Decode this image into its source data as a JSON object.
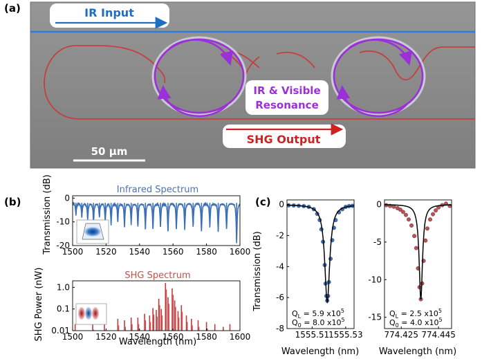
{
  "figure": {
    "panel_labels": {
      "a": "(a)",
      "b": "(b)",
      "c": "(c)"
    }
  },
  "micrograph": {
    "ir_input_label": "IR Input",
    "shg_output_label": "SHG Output",
    "resonance_label_line1": "IR & Visible",
    "resonance_label_line2": "Resonance",
    "scale_bar_label": "50 µm",
    "colors": {
      "ir": "#1f6fc0",
      "shg": "#cc2222",
      "resonance": "#9b30d9",
      "background": "#8c8c8c"
    }
  },
  "chart_data": [
    {
      "id": "ir_spectrum",
      "type": "line",
      "title": "Infrared Spectrum",
      "ylabel": "Transmission (dB)",
      "xlim": [
        1500,
        1600
      ],
      "ylim": [
        -20,
        1
      ],
      "xticks": [
        1500,
        1520,
        1540,
        1560,
        1580,
        1600
      ],
      "yticks": [
        0,
        -10,
        -20
      ],
      "baseline_db": -2,
      "dips": [
        {
          "x": 1502.0,
          "depth": -7
        },
        {
          "x": 1505.5,
          "depth": -8
        },
        {
          "x": 1509.0,
          "depth": -9
        },
        {
          "x": 1512.5,
          "depth": -10
        },
        {
          "x": 1516.0,
          "depth": -8
        },
        {
          "x": 1519.5,
          "depth": -10
        },
        {
          "x": 1523.0,
          "depth": -11
        },
        {
          "x": 1527.0,
          "depth": -10
        },
        {
          "x": 1531.0,
          "depth": -12
        },
        {
          "x": 1535.0,
          "depth": -11
        },
        {
          "x": 1539.0,
          "depth": -12
        },
        {
          "x": 1543.5,
          "depth": -13
        },
        {
          "x": 1548.0,
          "depth": -13
        },
        {
          "x": 1552.5,
          "depth": -12
        },
        {
          "x": 1557.0,
          "depth": -14
        },
        {
          "x": 1562.0,
          "depth": -13
        },
        {
          "x": 1567.0,
          "depth": -13
        },
        {
          "x": 1572.0,
          "depth": -12
        },
        {
          "x": 1577.0,
          "depth": -14
        },
        {
          "x": 1582.0,
          "depth": -12
        },
        {
          "x": 1587.0,
          "depth": -14
        },
        {
          "x": 1592.0,
          "depth": -13
        },
        {
          "x": 1598.0,
          "depth": -19
        }
      ],
      "colors": {
        "line": "#3b6fb6"
      }
    },
    {
      "id": "shg_spectrum",
      "type": "bar",
      "title": "SHG Spectrum",
      "xlabel": "Wavelength (nm)",
      "ylabel": "SHG Power (nW)",
      "yscale": "log",
      "xlim": [
        1500,
        1600
      ],
      "ylim": [
        0.01,
        2
      ],
      "xticks": [
        1500,
        1520,
        1540,
        1560,
        1580,
        1600
      ],
      "ytick_labels": [
        "1.0",
        "0.1",
        "0.01"
      ],
      "ytick_values": [
        1.0,
        0.1,
        0.01
      ],
      "peaks": [
        {
          "x": 1501.5,
          "y": 0.02
        },
        {
          "x": 1512.0,
          "y": 0.022
        },
        {
          "x": 1519.0,
          "y": 0.02
        },
        {
          "x": 1527.0,
          "y": 0.035
        },
        {
          "x": 1531.0,
          "y": 0.03
        },
        {
          "x": 1535.0,
          "y": 0.04
        },
        {
          "x": 1539.0,
          "y": 0.04
        },
        {
          "x": 1543.0,
          "y": 0.06
        },
        {
          "x": 1546.0,
          "y": 0.05
        },
        {
          "x": 1548.0,
          "y": 0.11
        },
        {
          "x": 1550.0,
          "y": 0.09
        },
        {
          "x": 1551.5,
          "y": 0.3
        },
        {
          "x": 1553.0,
          "y": 0.1
        },
        {
          "x": 1555.5,
          "y": 1.6
        },
        {
          "x": 1557.0,
          "y": 0.35
        },
        {
          "x": 1559.5,
          "y": 0.9
        },
        {
          "x": 1561.0,
          "y": 0.25
        },
        {
          "x": 1563.0,
          "y": 0.08
        },
        {
          "x": 1565.0,
          "y": 0.15
        },
        {
          "x": 1568.0,
          "y": 0.05
        },
        {
          "x": 1571.0,
          "y": 0.035
        },
        {
          "x": 1575.0,
          "y": 0.03
        },
        {
          "x": 1580.0,
          "y": 0.025
        },
        {
          "x": 1585.0,
          "y": 0.02
        },
        {
          "x": 1590.0,
          "y": 0.015
        },
        {
          "x": 1594.0,
          "y": 0.02
        }
      ],
      "colors": {
        "bar": "#c23a3a"
      }
    },
    {
      "id": "ir_resonance",
      "type": "scatter",
      "xlabel": "Wavelength (nm)",
      "ylabel": "Transmission (dB)",
      "xlim": [
        1555.495,
        1555.535
      ],
      "ylim": [
        -8,
        0.3
      ],
      "xticks": [
        1555.51,
        1555.53
      ],
      "xtick_labels": [
        "1555.51",
        "1555.53"
      ],
      "yticks": [
        0,
        -2,
        -4,
        -6,
        -8
      ],
      "resonance_center": 1555.519,
      "depth_db": -6.3,
      "fwhm": 0.0036,
      "points": [
        [
          1555.496,
          -0.05
        ],
        [
          1555.499,
          -0.06
        ],
        [
          1555.502,
          -0.08
        ],
        [
          1555.505,
          -0.1
        ],
        [
          1555.508,
          -0.15
        ],
        [
          1555.511,
          -0.3
        ],
        [
          1555.513,
          -0.6
        ],
        [
          1555.5145,
          -1.0
        ],
        [
          1555.5155,
          -1.6
        ],
        [
          1555.5165,
          -2.4
        ],
        [
          1555.5175,
          -3.9
        ],
        [
          1555.518,
          -5.1
        ],
        [
          1555.5185,
          -5.9
        ],
        [
          1555.519,
          -6.2
        ],
        [
          1555.5195,
          -5.9
        ],
        [
          1555.52,
          -5.0
        ],
        [
          1555.521,
          -3.5
        ],
        [
          1555.522,
          -2.3
        ],
        [
          1555.523,
          -1.5
        ],
        [
          1555.524,
          -1.0
        ],
        [
          1555.526,
          -0.5
        ],
        [
          1555.528,
          -0.3
        ],
        [
          1555.53,
          -0.15
        ],
        [
          1555.532,
          -0.1
        ],
        [
          1555.534,
          -0.08
        ]
      ],
      "annotation_line1": "Q",
      "annotation_line1_sub": "L",
      "annotation_line1_value": " = 5.9 x10",
      "annotation_line1_exp": "5",
      "annotation_line2": "Q",
      "annotation_line2_sub": "0",
      "annotation_line2_value": " = 8.0 x10",
      "annotation_line2_exp": "5",
      "colors": {
        "points": "#3b6fb6",
        "fit": "#000000"
      }
    },
    {
      "id": "visible_resonance",
      "type": "scatter",
      "xlabel": "Wavelength (nm)",
      "xlim": [
        774.416,
        774.452
      ],
      "ylim": [
        -16.5,
        0.6
      ],
      "xticks": [
        774.425,
        774.445
      ],
      "xtick_labels": [
        "774.425",
        "774.445"
      ],
      "yticks": [
        0,
        -5,
        -10,
        -15
      ],
      "resonance_center": 774.4355,
      "depth_db": -12.6,
      "fwhm": 0.0022,
      "points": [
        [
          774.417,
          -0.1
        ],
        [
          774.419,
          -0.2
        ],
        [
          774.421,
          -0.3
        ],
        [
          774.423,
          -0.5
        ],
        [
          774.4245,
          -0.7
        ],
        [
          774.426,
          -1.0
        ],
        [
          774.4275,
          -1.4
        ],
        [
          774.429,
          -2.0
        ],
        [
          774.4305,
          -2.8
        ],
        [
          774.432,
          -4.2
        ],
        [
          774.433,
          -5.8
        ],
        [
          774.434,
          -8.5
        ],
        [
          774.4348,
          -11.0
        ],
        [
          774.4355,
          -12.6
        ],
        [
          774.4362,
          -10.5
        ],
        [
          774.437,
          -7.5
        ],
        [
          774.438,
          -4.8
        ],
        [
          774.439,
          -3.2
        ],
        [
          774.4405,
          -2.0
        ],
        [
          774.442,
          -1.3
        ],
        [
          774.4435,
          -0.8
        ],
        [
          774.445,
          -0.4
        ],
        [
          774.447,
          -0.1
        ],
        [
          774.449,
          0.1
        ],
        [
          774.451,
          -0.2
        ]
      ],
      "annotation_line1": "Q",
      "annotation_line1_sub": "L",
      "annotation_line1_value": " = 2.5 x10",
      "annotation_line1_exp": "5",
      "annotation_line2": "Q",
      "annotation_line2_sub": "0",
      "annotation_line2_value": " = 4.0 x10",
      "annotation_line2_exp": "5",
      "colors": {
        "points": "#c0504d",
        "fit": "#000000"
      }
    }
  ]
}
